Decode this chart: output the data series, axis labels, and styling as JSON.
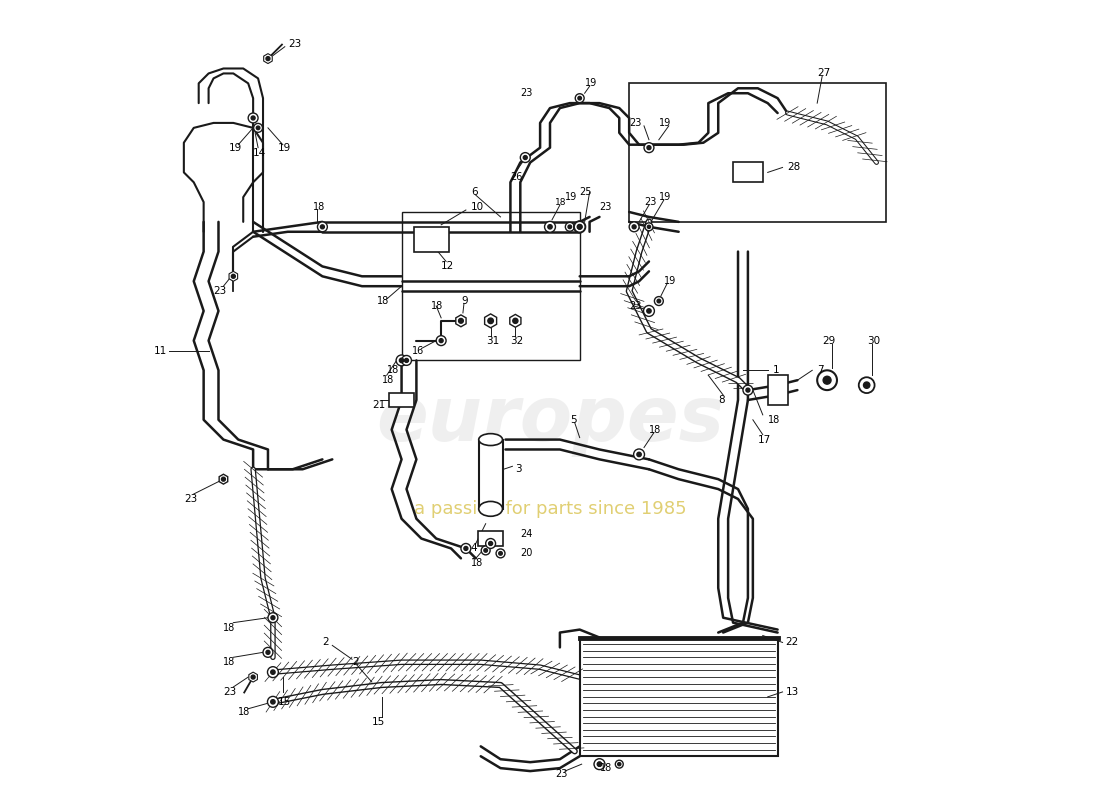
{
  "background_color": "#ffffff",
  "line_color": "#1a1a1a",
  "watermark_text1": "europes",
  "watermark_text2": "a passion for parts since 1985",
  "figsize": [
    11.0,
    8.0
  ],
  "dpi": 100
}
